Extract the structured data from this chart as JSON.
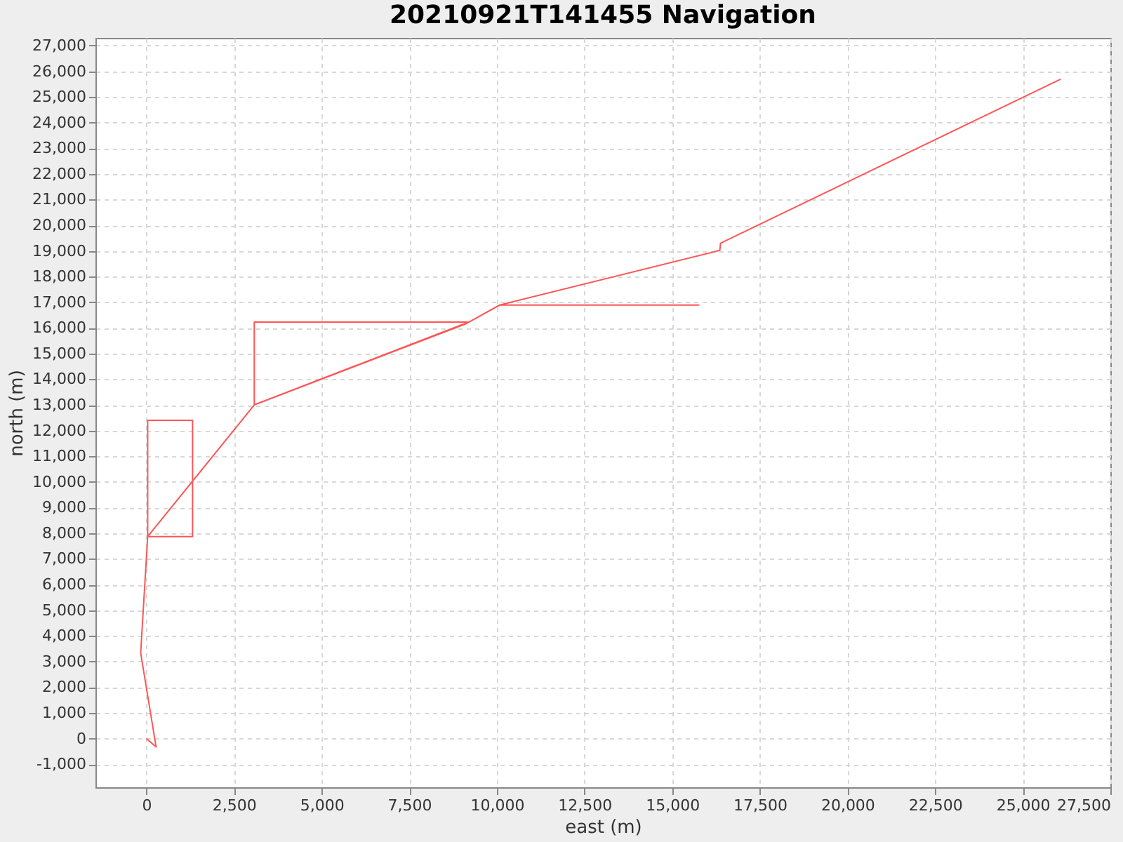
{
  "chart_data": {
    "type": "line",
    "title": "20210921T141455 Navigation",
    "xlabel": "east (m)",
    "ylabel": "north (m)",
    "x": [
      0,
      280,
      -160,
      40,
      1320,
      1320,
      40,
      40,
      3080,
      3080,
      9200,
      3080,
      9100,
      10080,
      15760,
      10080,
      16360,
      16380,
      26080
    ],
    "series": [
      {
        "color": "#ff5555",
        "values": [
          0,
          -330,
          3330,
          7870,
          7870,
          12400,
          12400,
          7870,
          13000,
          16230,
          16230,
          13000,
          16150,
          16890,
          16890,
          16890,
          19020,
          19300,
          25690
        ]
      }
    ],
    "xlim": [
      -1450,
      27500
    ],
    "ylim": [
      -1900,
      27300
    ],
    "xticks": [
      0,
      {
        "value": 2500,
        "label": "2,500"
      },
      {
        "value": 5000,
        "label": "5,000"
      },
      {
        "value": 7500,
        "label": "7,500"
      },
      {
        "value": 10000,
        "label": "10,000"
      },
      {
        "value": 12500,
        "label": "12,500"
      },
      {
        "value": 15000,
        "label": "15,000"
      },
      {
        "value": 17500,
        "label": "17,500"
      },
      {
        "value": 20000,
        "label": "20,000"
      },
      {
        "value": 22500,
        "label": "22,500"
      },
      {
        "value": 25000,
        "label": "25,000"
      },
      {
        "value": 27500,
        "label": "27,500"
      }
    ],
    "yticks": [
      {
        "value": -1000,
        "label": "-1,000"
      },
      0,
      {
        "value": 1000,
        "label": "1,000"
      },
      {
        "value": 2000,
        "label": "2,000"
      },
      {
        "value": 3000,
        "label": "3,000"
      },
      {
        "value": 4000,
        "label": "4,000"
      },
      {
        "value": 5000,
        "label": "5,000"
      },
      {
        "value": 6000,
        "label": "6,000"
      },
      {
        "value": 7000,
        "label": "7,000"
      },
      {
        "value": 8000,
        "label": "8,000"
      },
      {
        "value": 9000,
        "label": "9,000"
      },
      {
        "value": 10000,
        "label": "10,000"
      },
      {
        "value": 11000,
        "label": "11,000"
      },
      {
        "value": 12000,
        "label": "12,000"
      },
      {
        "value": 13000,
        "label": "13,000"
      },
      {
        "value": 14000,
        "label": "14,000"
      },
      {
        "value": 15000,
        "label": "15,000"
      },
      {
        "value": 16000,
        "label": "16,000"
      },
      {
        "value": 17000,
        "label": "17,000"
      },
      {
        "value": 18000,
        "label": "18,000"
      },
      {
        "value": 19000,
        "label": "19,000"
      },
      {
        "value": 20000,
        "label": "20,000"
      },
      {
        "value": 21000,
        "label": "21,000"
      },
      {
        "value": 22000,
        "label": "22,000"
      },
      {
        "value": 23000,
        "label": "23,000"
      },
      {
        "value": 24000,
        "label": "24,000"
      },
      {
        "value": 25000,
        "label": "25,000"
      },
      {
        "value": 26000,
        "label": "26,000"
      },
      {
        "value": 27000,
        "label": "27,000"
      }
    ],
    "grid": true,
    "marker": "none",
    "line_style": "solid"
  }
}
